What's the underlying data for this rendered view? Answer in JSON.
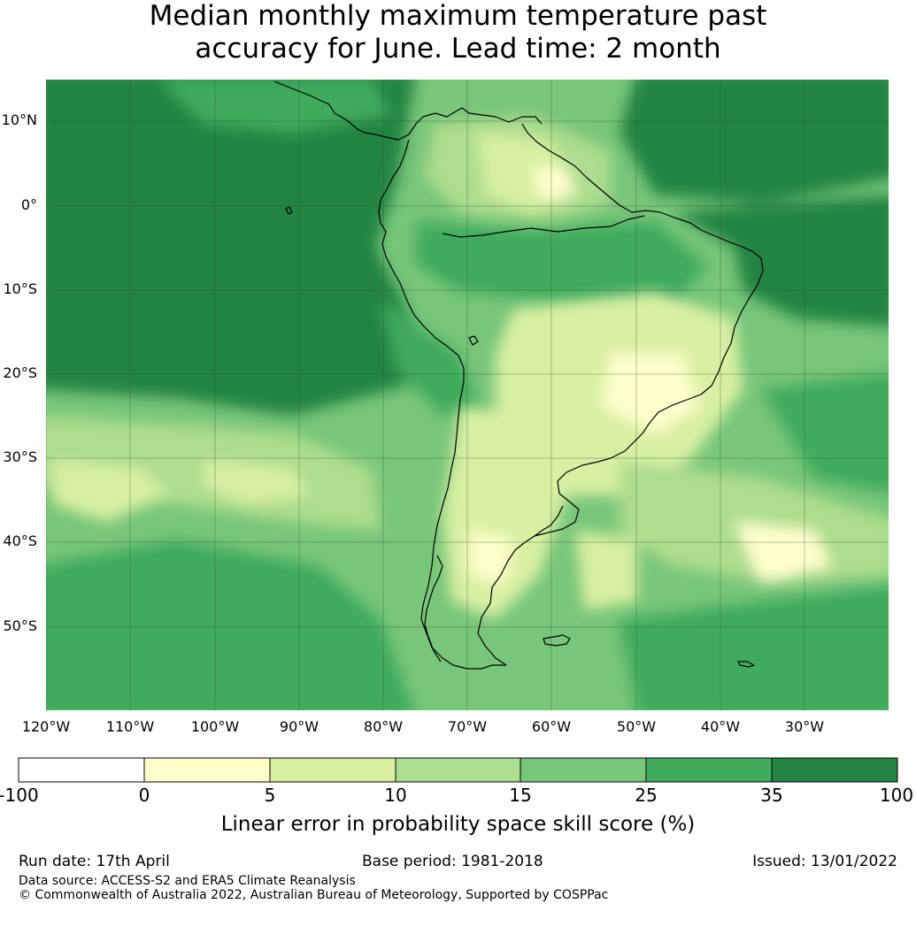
{
  "title": {
    "line1": "Median monthly maximum temperature past",
    "line2": "accuracy for June. Lead time: 2 month"
  },
  "map": {
    "lat_labels": [
      "10°N",
      "0°",
      "10°S",
      "20°S",
      "30°S",
      "40°S",
      "50°S"
    ],
    "lon_labels": [
      "120°W",
      "110°W",
      "100°W",
      "90°W",
      "80°W",
      "70°W",
      "60°W",
      "50°W",
      "40°W",
      "30°W"
    ],
    "ocean_base_color": "#7ac576",
    "coastline_color": "#000000"
  },
  "colorbar": {
    "bins": [
      {
        "from": -100,
        "to": 0,
        "color": "#ffffff"
      },
      {
        "from": 0,
        "to": 5,
        "color": "#ffffcc"
      },
      {
        "from": 5,
        "to": 10,
        "color": "#d9f0a3"
      },
      {
        "from": 10,
        "to": 15,
        "color": "#addd8e"
      },
      {
        "from": 15,
        "to": 25,
        "color": "#78c679"
      },
      {
        "from": 25,
        "to": 35,
        "color": "#41ab5d"
      },
      {
        "from": 35,
        "to": 100,
        "color": "#238443"
      }
    ],
    "ticks": [
      "-100",
      "0",
      "5",
      "10",
      "15",
      "25",
      "35",
      "100"
    ],
    "label": "Linear error in probability space skill score (%)"
  },
  "footer": {
    "run_date": "Run date: 17th April",
    "base_period": "Base period: 1981-2018",
    "issued": "Issued: 13/01/2022",
    "data_source": "Data source: ACCESS-S2 and ERA5 Climate Reanalysis",
    "copyright": "© Commonwealth of Australia 2022, Australian Bureau of Meteorology, Supported by COSPPac"
  }
}
